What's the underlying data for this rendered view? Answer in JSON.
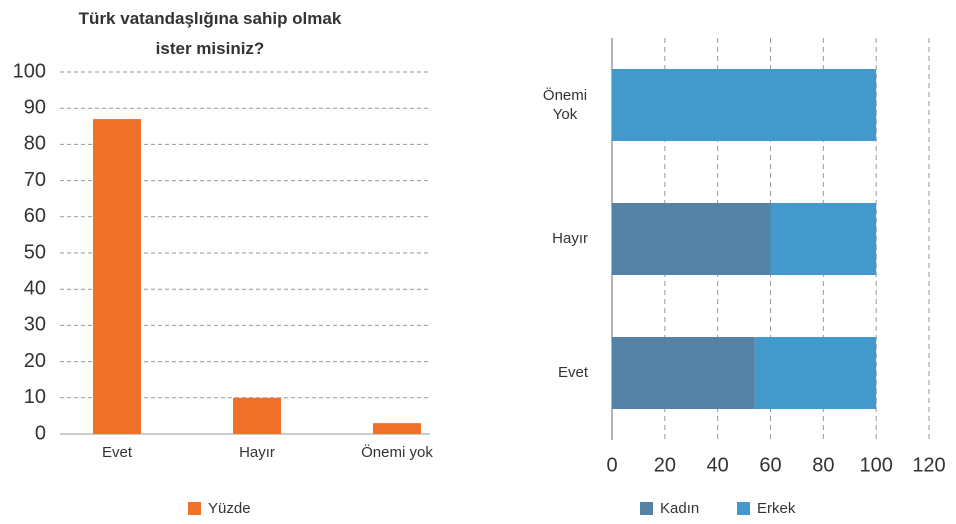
{
  "chart_data": [
    {
      "type": "bar",
      "title": "Türk vatandaşlığına sahip olmak ister misiniz?",
      "categories": [
        "Evet",
        "Hayır",
        "Önemi yok"
      ],
      "series": [
        {
          "name": "Yüzde",
          "color": "#f07228",
          "values": [
            87,
            10,
            3
          ]
        }
      ],
      "ylim": [
        0,
        100
      ],
      "yticks": [
        0,
        10,
        20,
        30,
        40,
        50,
        60,
        70,
        80,
        90,
        100
      ],
      "grid": true,
      "legend": "bottom"
    },
    {
      "type": "hbar_stacked",
      "categories": [
        "Evet",
        "Hayır",
        "Önemi Yok"
      ],
      "series": [
        {
          "name": "Kadın",
          "color": "#5481a6",
          "values": [
            54,
            60,
            0
          ]
        },
        {
          "name": "Erkek",
          "color": "#4499cc",
          "values": [
            46,
            40,
            100
          ]
        }
      ],
      "xlim": [
        0,
        120
      ],
      "xticks": [
        0,
        20,
        40,
        60,
        80,
        100,
        120
      ],
      "grid": true,
      "legend": "bottom"
    }
  ]
}
